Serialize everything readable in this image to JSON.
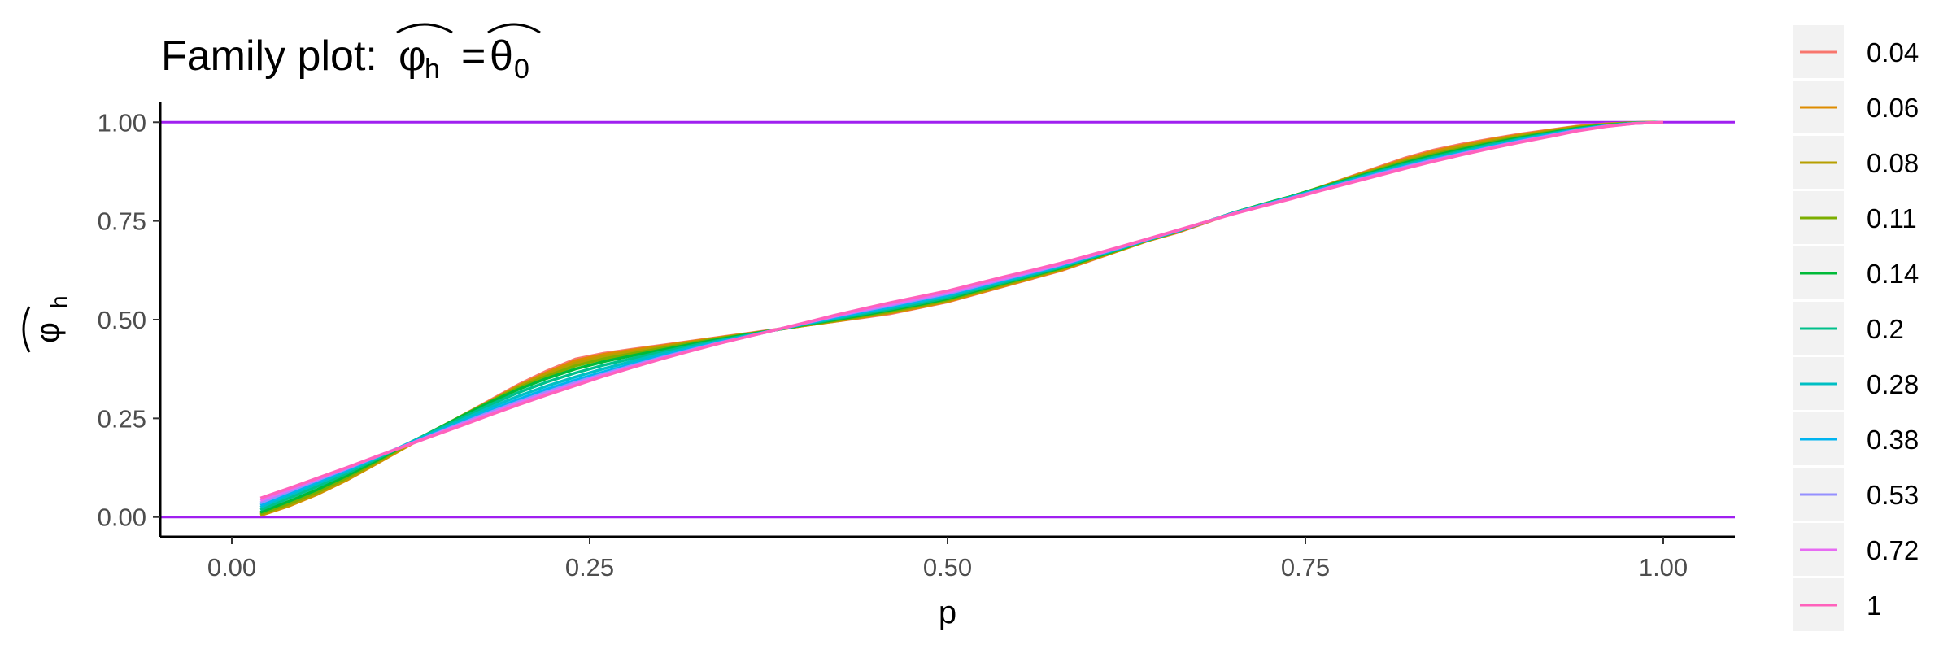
{
  "chart_data": {
    "type": "line",
    "title": "Family plot: ",
    "title_math": {
      "lhs": "φ",
      "lhs_sub": "h",
      "eq": "=",
      "rhs": "θ",
      "rhs_sub": "0"
    },
    "xlabel": "p",
    "ylabel_math": {
      "sym": "φ",
      "sub": "h"
    },
    "xlim": [
      -0.05,
      1.05
    ],
    "ylim": [
      -0.05,
      1.05
    ],
    "x_ticks": [
      "0.00",
      "0.25",
      "0.50",
      "0.75",
      "1.00"
    ],
    "y_ticks": [
      "0.00",
      "0.25",
      "0.50",
      "0.75",
      "1.00"
    ],
    "grid": false,
    "legend_placement": "right",
    "hlines": [
      {
        "y": 0,
        "color": "#a020f0"
      },
      {
        "y": 1,
        "color": "#a020f0"
      }
    ],
    "x": [
      0.02,
      0.04,
      0.06,
      0.08,
      0.1,
      0.12,
      0.14,
      0.16,
      0.18,
      0.2,
      0.22,
      0.24,
      0.26,
      0.28,
      0.3,
      0.32,
      0.34,
      0.36,
      0.38,
      0.4,
      0.42,
      0.44,
      0.46,
      0.48,
      0.5,
      0.52,
      0.54,
      0.56,
      0.58,
      0.6,
      0.62,
      0.64,
      0.66,
      0.68,
      0.7,
      0.72,
      0.74,
      0.76,
      0.78,
      0.8,
      0.82,
      0.84,
      0.86,
      0.88,
      0.9,
      0.92,
      0.94,
      0.96,
      0.98,
      1.0
    ],
    "series": [
      {
        "name": "0.04",
        "color": "#F8766D",
        "values": [
          0.005,
          0.03,
          0.06,
          0.095,
          0.135,
          0.175,
          0.215,
          0.255,
          0.295,
          0.335,
          0.37,
          0.4,
          0.415,
          0.425,
          0.435,
          0.445,
          0.455,
          0.465,
          0.475,
          0.485,
          0.495,
          0.505,
          0.515,
          0.53,
          0.545,
          0.565,
          0.585,
          0.605,
          0.625,
          0.65,
          0.675,
          0.7,
          0.72,
          0.745,
          0.77,
          0.79,
          0.81,
          0.835,
          0.86,
          0.885,
          0.91,
          0.93,
          0.945,
          0.958,
          0.97,
          0.98,
          0.99,
          0.996,
          0.999,
          1.0
        ]
      },
      {
        "name": "0.06",
        "color": "#DE8C00",
        "values": [
          0.004,
          0.028,
          0.058,
          0.093,
          0.133,
          0.174,
          0.214,
          0.254,
          0.293,
          0.332,
          0.366,
          0.396,
          0.412,
          0.423,
          0.433,
          0.444,
          0.454,
          0.464,
          0.474,
          0.485,
          0.495,
          0.506,
          0.517,
          0.531,
          0.546,
          0.566,
          0.586,
          0.606,
          0.626,
          0.651,
          0.675,
          0.7,
          0.721,
          0.746,
          0.77,
          0.791,
          0.811,
          0.835,
          0.859,
          0.883,
          0.907,
          0.927,
          0.942,
          0.956,
          0.968,
          0.979,
          0.989,
          0.995,
          0.999,
          1.0
        ]
      },
      {
        "name": "0.08",
        "color": "#B79F00",
        "values": [
          0.006,
          0.03,
          0.06,
          0.095,
          0.135,
          0.176,
          0.216,
          0.255,
          0.293,
          0.33,
          0.362,
          0.39,
          0.407,
          0.419,
          0.43,
          0.442,
          0.453,
          0.464,
          0.474,
          0.485,
          0.496,
          0.507,
          0.519,
          0.533,
          0.548,
          0.568,
          0.588,
          0.608,
          0.628,
          0.652,
          0.676,
          0.701,
          0.722,
          0.746,
          0.771,
          0.792,
          0.812,
          0.835,
          0.858,
          0.881,
          0.904,
          0.923,
          0.939,
          0.953,
          0.966,
          0.977,
          0.988,
          0.995,
          0.999,
          1.0
        ]
      },
      {
        "name": "0.11",
        "color": "#7CAE00",
        "values": [
          0.008,
          0.034,
          0.064,
          0.099,
          0.138,
          0.178,
          0.217,
          0.255,
          0.292,
          0.327,
          0.357,
          0.383,
          0.401,
          0.414,
          0.427,
          0.44,
          0.452,
          0.463,
          0.474,
          0.486,
          0.497,
          0.509,
          0.521,
          0.535,
          0.55,
          0.57,
          0.59,
          0.61,
          0.63,
          0.654,
          0.677,
          0.701,
          0.722,
          0.747,
          0.771,
          0.792,
          0.812,
          0.834,
          0.857,
          0.879,
          0.901,
          0.919,
          0.935,
          0.95,
          0.963,
          0.975,
          0.986,
          0.994,
          0.999,
          1.0
        ]
      },
      {
        "name": "0.14",
        "color": "#00BA38",
        "values": [
          0.012,
          0.04,
          0.07,
          0.104,
          0.141,
          0.18,
          0.217,
          0.254,
          0.29,
          0.323,
          0.351,
          0.375,
          0.394,
          0.409,
          0.423,
          0.437,
          0.45,
          0.462,
          0.474,
          0.487,
          0.499,
          0.511,
          0.524,
          0.538,
          0.553,
          0.573,
          0.593,
          0.612,
          0.632,
          0.655,
          0.678,
          0.702,
          0.723,
          0.747,
          0.771,
          0.792,
          0.812,
          0.834,
          0.855,
          0.877,
          0.898,
          0.916,
          0.932,
          0.947,
          0.961,
          0.973,
          0.985,
          0.993,
          0.998,
          1.0
        ]
      },
      {
        "name": "0.2",
        "color": "#00C08B",
        "values": [
          0.018,
          0.048,
          0.078,
          0.11,
          0.145,
          0.181,
          0.216,
          0.25,
          0.284,
          0.315,
          0.342,
          0.365,
          0.385,
          0.402,
          0.418,
          0.433,
          0.447,
          0.46,
          0.474,
          0.488,
          0.501,
          0.514,
          0.527,
          0.541,
          0.556,
          0.576,
          0.595,
          0.614,
          0.634,
          0.657,
          0.679,
          0.702,
          0.723,
          0.747,
          0.771,
          0.791,
          0.811,
          0.832,
          0.853,
          0.874,
          0.894,
          0.912,
          0.928,
          0.944,
          0.958,
          0.971,
          0.983,
          0.992,
          0.998,
          1.0
        ]
      },
      {
        "name": "0.28",
        "color": "#00BFC4",
        "values": [
          0.025,
          0.055,
          0.085,
          0.115,
          0.148,
          0.181,
          0.213,
          0.245,
          0.277,
          0.306,
          0.332,
          0.355,
          0.376,
          0.395,
          0.413,
          0.429,
          0.445,
          0.459,
          0.474,
          0.489,
          0.503,
          0.517,
          0.53,
          0.545,
          0.56,
          0.579,
          0.598,
          0.617,
          0.636,
          0.658,
          0.68,
          0.703,
          0.724,
          0.747,
          0.77,
          0.79,
          0.81,
          0.831,
          0.851,
          0.872,
          0.891,
          0.909,
          0.925,
          0.941,
          0.956,
          0.969,
          0.982,
          0.991,
          0.998,
          1.0
        ]
      },
      {
        "name": "0.38",
        "color": "#00B4F0",
        "values": [
          0.03,
          0.06,
          0.09,
          0.119,
          0.15,
          0.18,
          0.21,
          0.24,
          0.27,
          0.298,
          0.324,
          0.347,
          0.368,
          0.388,
          0.408,
          0.426,
          0.443,
          0.458,
          0.474,
          0.49,
          0.505,
          0.519,
          0.533,
          0.548,
          0.563,
          0.582,
          0.601,
          0.619,
          0.638,
          0.66,
          0.681,
          0.703,
          0.724,
          0.747,
          0.77,
          0.789,
          0.809,
          0.829,
          0.849,
          0.87,
          0.889,
          0.907,
          0.923,
          0.939,
          0.954,
          0.968,
          0.981,
          0.991,
          0.997,
          1.0
        ]
      },
      {
        "name": "0.53",
        "color": "#9590FF",
        "values": [
          0.036,
          0.065,
          0.094,
          0.122,
          0.151,
          0.179,
          0.208,
          0.237,
          0.265,
          0.292,
          0.317,
          0.341,
          0.363,
          0.384,
          0.404,
          0.423,
          0.441,
          0.457,
          0.474,
          0.491,
          0.507,
          0.522,
          0.536,
          0.551,
          0.566,
          0.584,
          0.603,
          0.621,
          0.64,
          0.661,
          0.682,
          0.704,
          0.725,
          0.747,
          0.769,
          0.789,
          0.808,
          0.828,
          0.848,
          0.868,
          0.887,
          0.905,
          0.921,
          0.937,
          0.952,
          0.966,
          0.98,
          0.99,
          0.997,
          1.0
        ]
      },
      {
        "name": "0.72",
        "color": "#E76BF3",
        "values": [
          0.042,
          0.069,
          0.097,
          0.124,
          0.152,
          0.179,
          0.207,
          0.234,
          0.261,
          0.288,
          0.313,
          0.337,
          0.36,
          0.381,
          0.402,
          0.421,
          0.44,
          0.457,
          0.474,
          0.491,
          0.508,
          0.524,
          0.539,
          0.554,
          0.569,
          0.587,
          0.605,
          0.623,
          0.641,
          0.662,
          0.683,
          0.704,
          0.725,
          0.747,
          0.769,
          0.788,
          0.807,
          0.827,
          0.847,
          0.866,
          0.885,
          0.903,
          0.92,
          0.936,
          0.951,
          0.965,
          0.979,
          0.99,
          0.997,
          1.0
        ]
      },
      {
        "name": "1",
        "color": "#FF62BC",
        "values": [
          0.048,
          0.073,
          0.099,
          0.125,
          0.152,
          0.178,
          0.205,
          0.231,
          0.258,
          0.284,
          0.309,
          0.333,
          0.357,
          0.379,
          0.4,
          0.42,
          0.439,
          0.457,
          0.474,
          0.492,
          0.51,
          0.527,
          0.543,
          0.558,
          0.573,
          0.591,
          0.609,
          0.626,
          0.644,
          0.664,
          0.684,
          0.705,
          0.726,
          0.747,
          0.768,
          0.787,
          0.806,
          0.826,
          0.845,
          0.864,
          0.883,
          0.901,
          0.918,
          0.934,
          0.949,
          0.963,
          0.978,
          0.989,
          0.997,
          1.0
        ]
      }
    ]
  }
}
